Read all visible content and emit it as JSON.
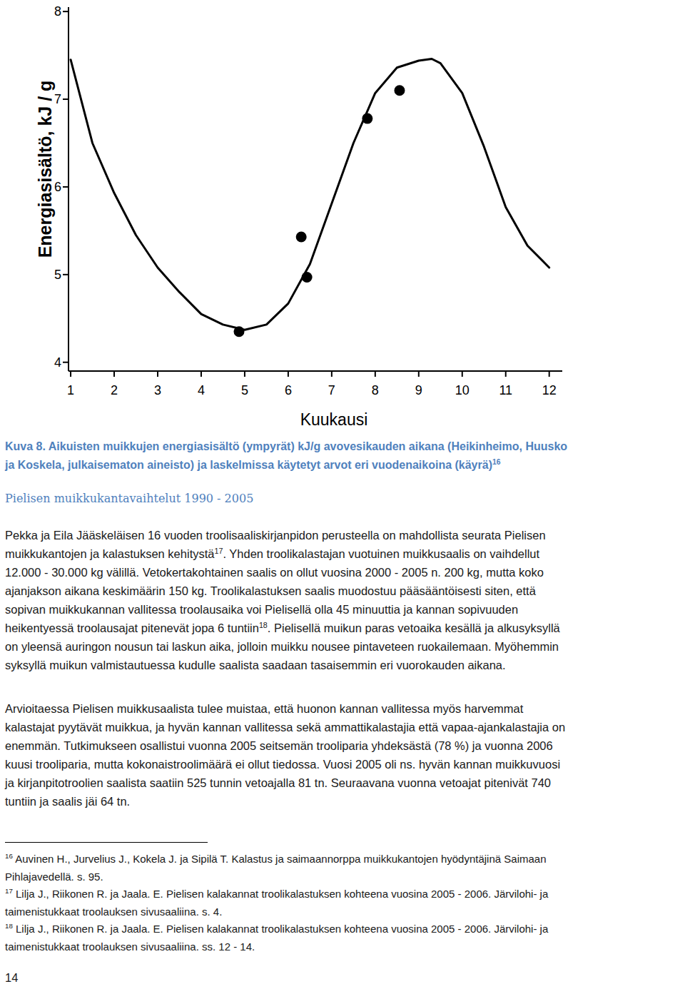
{
  "chart_data": {
    "type": "scatter",
    "xlabel": "Kuukausi",
    "ylabel": "Energiasisältö, kJ / g",
    "xlim": [
      0.95,
      12.3
    ],
    "xticks": [
      1,
      2,
      3,
      4,
      5,
      6,
      7,
      8,
      9,
      10,
      11,
      12
    ],
    "ylim": [
      3.9,
      8.05
    ],
    "yticks": [
      4,
      5,
      6,
      7,
      8
    ],
    "grid": false,
    "series": [
      {
        "type": "scatter",
        "marker": "circle",
        "color": "#000000",
        "x": [
          4.87,
          6.3,
          6.43,
          7.82,
          8.56
        ],
        "values": [
          4.35,
          5.43,
          4.97,
          6.78,
          7.1
        ]
      },
      {
        "type": "line",
        "line_style": "solid",
        "color": "#000000",
        "x": [
          1,
          1.5,
          2,
          2.5,
          3,
          3.5,
          4,
          4.5,
          5,
          5.5,
          6,
          6.5,
          7,
          7.5,
          8,
          8.5,
          9,
          9.3,
          9.5,
          10,
          10.5,
          11,
          11.5,
          12
        ],
        "values": [
          7.45,
          6.5,
          5.93,
          5.45,
          5.08,
          4.8,
          4.55,
          4.43,
          4.37,
          4.43,
          4.67,
          5.12,
          5.81,
          6.5,
          7.07,
          7.36,
          7.44,
          7.46,
          7.41,
          7.07,
          6.46,
          5.77,
          5.33,
          5.08
        ]
      }
    ]
  },
  "caption": [
    [
      "Kuva 8. Aikuisten muikkujen energiasisältö (ympyrät) kJ/g avovesikauden aikana (Heikinheimo, Huusko"
    ],
    [
      "ja Koskela, julkaisematon aineisto) ja laskelmissa käytetyt arvot eri vuodenaikoina (käyrä)",
      {
        "sup": "16"
      }
    ]
  ],
  "heading": "Pielisen muikkukantavaihtelut 1990 - 2005",
  "paragraphs": [
    [
      [
        "Pekka ja Eila Jääskeläisen 16 vuoden troolisaaliskirjanpidon perusteella on mahdollista seurata Pielisen"
      ],
      [
        "muikkukantojen ja kalastuksen kehitystä",
        {
          "sup": "17"
        },
        ". Yhden troolikalastajan vuotuinen muikkusaalis on vaihdellut"
      ],
      [
        "12.000 - 30.000 kg välillä. Vetokertakohtainen saalis on ollut vuosina 2000 - 2005 n. 200 kg, mutta koko"
      ],
      [
        "ajanjakson aikana keskimäärin 150 kg. Troolikalastuksen saalis muodostuu pääsääntöisesti siten, että"
      ],
      [
        "sopivan muikkukannan vallitessa troolausaika voi Pielisellä olla 45 minuuttia ja kannan sopivuuden"
      ],
      [
        "heikentyessä troolausajat pitenevät jopa 6 tuntiin",
        {
          "sup": "18"
        },
        ". Pielisellä muikun paras vetoaika kesällä ja alkusyksyllä"
      ],
      [
        "on yleensä auringon nousun tai laskun aika, jolloin muikku nousee pintaveteen ruokailemaan. Myöhemmin"
      ],
      [
        "syksyllä muikun valmistautuessa kudulle saalista saadaan tasaisemmin eri vuorokauden aikana."
      ]
    ],
    [
      [
        "Arvioitaessa Pielisen muikkusaalista tulee muistaa, että huonon kannan vallitessa myös harvemmat"
      ],
      [
        "kalastajat pyytävät muikkua, ja hyvän kannan vallitessa sekä ammattikalastajia että vapaa-ajankalastajia on"
      ],
      [
        "enemmän. Tutkimukseen osallistui vuonna 2005 seitsemän trooliparia yhdeksästä (78 %) ja vuonna 2006"
      ],
      [
        "kuusi trooliparia, mutta kokonaistroolimäärä ei ollut tiedossa. Vuosi 2005 oli ns. hyvän kannan muikkuvuosi"
      ],
      [
        "ja kirjanpitotroolien saalista saatiin 525 tunnin vetoajalla 81 tn. Seuraavana vuonna vetoajat pitenivät 740"
      ],
      [
        "tuntiin ja saalis jäi 64 tn."
      ]
    ]
  ],
  "footnotes": [
    [
      [
        {
          "sup": "16"
        },
        " Auvinen H., Jurvelius J., Kokela J. ja Sipilä T. Kalastus ja saimaannorppa muikkukantojen hyödyntäjinä Saimaan"
      ],
      [
        "Pihlajavedellä. s. 95."
      ]
    ],
    [
      [
        {
          "sup": "17"
        },
        " Lilja J., Riikonen R. ja Jaala. E. Pielisen kalakannat troolikalastuksen kohteena vuosina 2005 - 2006. Järvilohi- ja"
      ],
      [
        "taimenistukkaat troolauksen sivusaaliina. s. 4."
      ]
    ],
    [
      [
        {
          "sup": "18"
        },
        " Lilja J., Riikonen R. ja Jaala. E. Pielisen kalakannat troolikalastuksen kohteena vuosina 2005 - 2006. Järvilohi- ja"
      ],
      [
        "taimenistukkaat troolauksen sivusaaliina. ss. 12 - 14."
      ]
    ]
  ],
  "page_number": "14"
}
